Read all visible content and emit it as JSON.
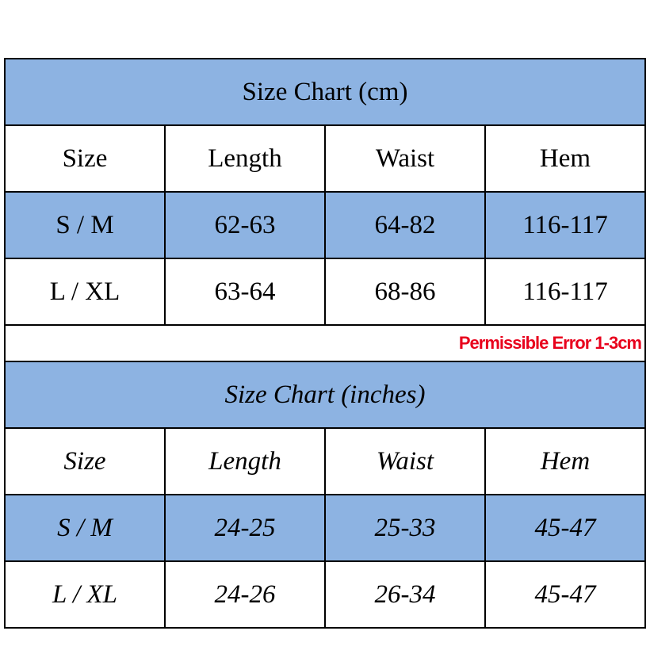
{
  "cm": {
    "title": "Size Chart (cm)",
    "header": [
      "Size",
      "Length",
      "Waist",
      "Hem"
    ],
    "rows": [
      [
        "S / M",
        "62-63",
        "64-82",
        "116-117"
      ],
      [
        "L / XL",
        "63-64",
        "68-86",
        "116-117"
      ]
    ]
  },
  "note": "Permissible Error 1-3cm",
  "inches": {
    "title": "Size Chart (inches)",
    "header": [
      "Size",
      "Length",
      "Waist",
      "Hem"
    ],
    "rows": [
      [
        "S / M",
        "24-25",
        "25-33",
        "45-47"
      ],
      [
        "L / XL",
        "24-26",
        "26-34",
        "45-47"
      ]
    ]
  }
}
